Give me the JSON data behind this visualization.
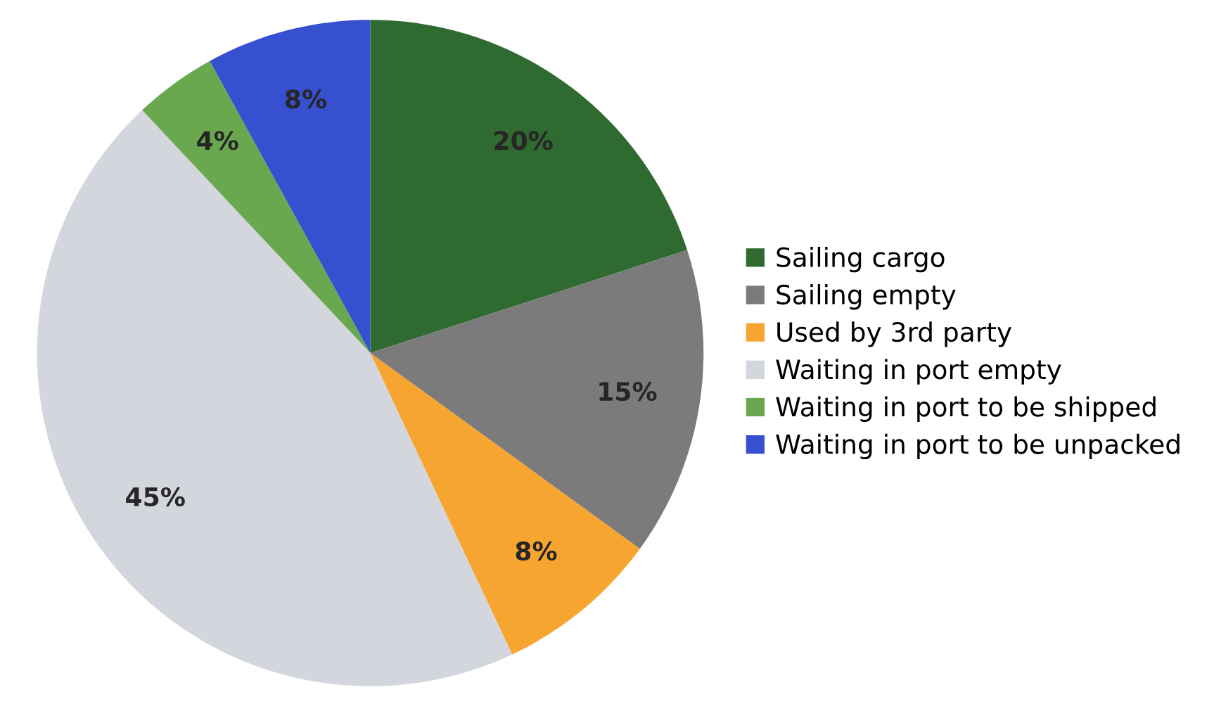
{
  "chart_data": {
    "type": "pie",
    "categories": [
      "Sailing cargo",
      "Sailing empty",
      "Used by 3rd party",
      "Waiting in port empty",
      "Waiting in port to be shipped",
      "Waiting in port to be unpacked"
    ],
    "values": [
      20,
      15,
      8,
      45,
      4,
      8
    ],
    "colors": [
      "#2f6a31",
      "#7b7b7b",
      "#f7a531",
      "#d3d6dd",
      "#6aa84f",
      "#3650d0"
    ],
    "value_labels": [
      "20%",
      "15%",
      "8%",
      "45%",
      "4%",
      "8%"
    ],
    "legend": "right"
  }
}
